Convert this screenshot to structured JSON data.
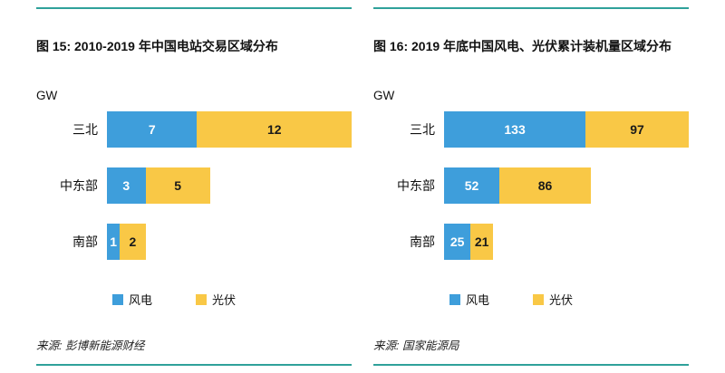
{
  "page": {
    "rule_color": "#2FA19A"
  },
  "chart_data": [
    {
      "type": "bar",
      "orientation": "horizontal",
      "stacked": true,
      "title": "图 15: 2010-2019 年中国电站交易区域分布",
      "unit_label": "GW",
      "categories": [
        "三北",
        "中东部",
        "南部"
      ],
      "series": [
        {
          "name": "风电",
          "color": "#3E9EDB",
          "label_color": "#ffffff",
          "values": [
            7,
            3,
            1
          ]
        },
        {
          "name": "光伏",
          "color": "#F9C846",
          "label_color": "#1a1a1a",
          "values": [
            12,
            5,
            2
          ]
        }
      ],
      "xlim": [
        0,
        19
      ],
      "grid": false,
      "legend_position": "bottom",
      "source": "来源: 彭博新能源财经"
    },
    {
      "type": "bar",
      "orientation": "horizontal",
      "stacked": true,
      "title": "图 16: 2019 年底中国风电、光伏累计装机量区域分布",
      "unit_label": "GW",
      "categories": [
        "三北",
        "中东部",
        "南部"
      ],
      "series": [
        {
          "name": "风电",
          "color": "#3E9EDB",
          "label_color": "#ffffff",
          "values": [
            133,
            52,
            25
          ]
        },
        {
          "name": "光伏",
          "color": "#F9C846",
          "label_color": "#1a1a1a",
          "values": [
            97,
            86,
            21
          ]
        }
      ],
      "xlim": [
        0,
        230
      ],
      "grid": false,
      "legend_position": "bottom",
      "source": "来源: 国家能源局"
    }
  ]
}
